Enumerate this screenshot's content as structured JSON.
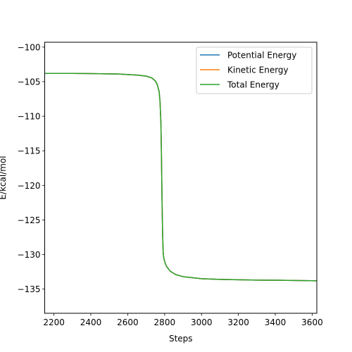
{
  "chart_data": {
    "type": "line",
    "title": "",
    "xlabel": "Steps",
    "ylabel": "E/kcal/mol",
    "xlim": [
      2150,
      3625
    ],
    "ylim": [
      -138.5,
      -99.3
    ],
    "xticks": [
      2200,
      2400,
      2600,
      2800,
      3000,
      3200,
      3400,
      3600
    ],
    "yticks": [
      -100,
      -105,
      -110,
      -115,
      -120,
      -125,
      -130,
      -135
    ],
    "xtick_labels": [
      "2200",
      "2400",
      "2600",
      "2800",
      "3000",
      "3200",
      "3400",
      "3600"
    ],
    "ytick_labels": [
      "−100",
      "−105",
      "−110",
      "−115",
      "−120",
      "−125",
      "−130",
      "−135"
    ],
    "grid": false,
    "legend_position": "upper-right",
    "x": [
      2150,
      2300,
      2450,
      2550,
      2650,
      2700,
      2730,
      2750,
      2760,
      2770,
      2775,
      2780,
      2783,
      2786,
      2789,
      2792,
      2795,
      2800,
      2810,
      2830,
      2860,
      2900,
      3000,
      3100,
      3200,
      3300,
      3400,
      3500,
      3625
    ],
    "series": [
      {
        "name": "Potential Energy",
        "color": "#1f77b4",
        "values": [
          -103.8,
          -103.8,
          -103.85,
          -103.9,
          -104.05,
          -104.2,
          -104.45,
          -104.9,
          -105.4,
          -106.4,
          -107.8,
          -111.0,
          -116.0,
          -122.0,
          -126.8,
          -129.6,
          -130.4,
          -131.0,
          -131.7,
          -132.4,
          -132.9,
          -133.2,
          -133.5,
          -133.6,
          -133.65,
          -133.7,
          -133.72,
          -133.75,
          -133.8
        ]
      },
      {
        "name": "Kinetic Energy",
        "color": "#ff7f0e",
        "values": [
          -103.8,
          -103.8,
          -103.85,
          -103.9,
          -104.05,
          -104.2,
          -104.45,
          -104.9,
          -105.4,
          -106.4,
          -107.8,
          -111.0,
          -116.0,
          -122.0,
          -126.8,
          -129.6,
          -130.4,
          -131.0,
          -131.7,
          -132.4,
          -132.9,
          -133.2,
          -133.5,
          -133.6,
          -133.65,
          -133.7,
          -133.72,
          -133.75,
          -133.8
        ]
      },
      {
        "name": "Total Energy",
        "color": "#2ca02c",
        "values": [
          -103.8,
          -103.8,
          -103.85,
          -103.9,
          -104.05,
          -104.2,
          -104.45,
          -104.9,
          -105.4,
          -106.4,
          -107.8,
          -111.0,
          -116.0,
          -122.0,
          -126.8,
          -129.6,
          -130.4,
          -131.0,
          -131.7,
          -132.4,
          -132.9,
          -133.2,
          -133.5,
          -133.6,
          -133.65,
          -133.7,
          -133.72,
          -133.75,
          -133.8
        ]
      }
    ]
  }
}
